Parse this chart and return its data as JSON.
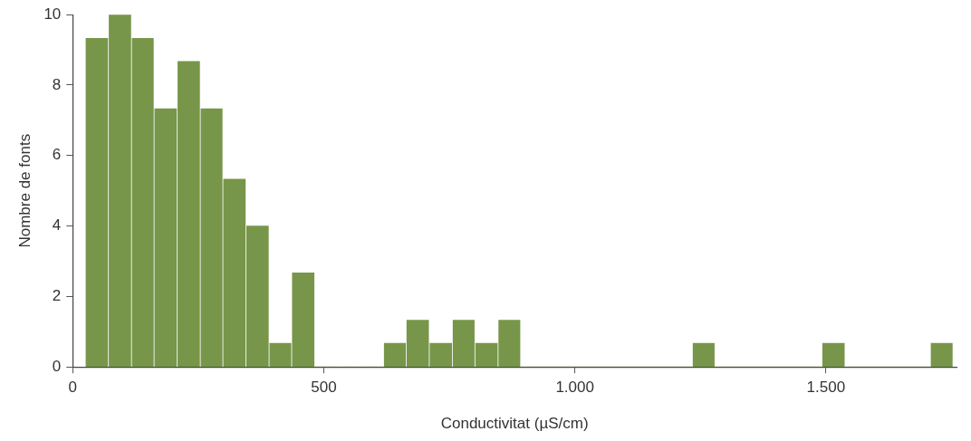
{
  "chart_data": {
    "type": "histogram",
    "xlabel": "Conductivitat (µS/cm)",
    "ylabel": "Nombre de fonts",
    "bins": [
      25,
      71,
      117,
      162,
      208,
      254,
      299,
      345,
      391,
      436,
      482,
      527,
      573,
      619,
      664,
      710,
      756,
      801,
      847,
      892,
      1234,
      1279,
      1492,
      1538,
      1708,
      1753
    ],
    "values": [
      9.33,
      10,
      9.33,
      7.33,
      8.67,
      7.33,
      5.33,
      4,
      0.67,
      2.67,
      0,
      0,
      0,
      0.67,
      1.33,
      0.67,
      1.33,
      0.67,
      1.33,
      0,
      0.67,
      0,
      0.67,
      0,
      0.67
    ],
    "color": "#779649",
    "xlim": [
      0,
      1760
    ],
    "xticks": [
      0,
      500,
      {
        "value": 1000,
        "label": "1.000"
      },
      {
        "value": 1500,
        "label": "1.500"
      }
    ],
    "ylim": [
      0,
      10
    ],
    "yticks": [
      0,
      2,
      4,
      6,
      8,
      10
    ],
    "grid": false,
    "legend": false
  }
}
